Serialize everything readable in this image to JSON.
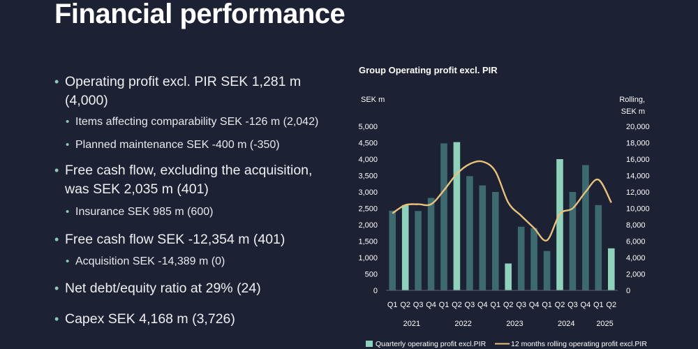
{
  "slide": {
    "title": "Financial performance"
  },
  "bullets": [
    {
      "level": 1,
      "text": "Operating profit excl. PIR SEK 1,281 m (4,000)"
    },
    {
      "level": 2,
      "text": "Items affecting comparability SEK -126 m (2,042)"
    },
    {
      "level": 2,
      "text": "Planned maintenance SEK -400 m (-350)"
    },
    {
      "level": 1,
      "text": "Free cash flow, excluding the acquisition, was SEK 2,035 m (401)"
    },
    {
      "level": 2,
      "text": "Insurance SEK 985 m (600)"
    },
    {
      "level": 1,
      "text": "Free cash flow SEK -12,354 m (401)"
    },
    {
      "level": 2,
      "text": "Acquisition SEK -14,389 m (0)"
    },
    {
      "level": 1,
      "text": "Net debt/equity ratio at 29% (24)"
    },
    {
      "level": 1,
      "text": "Capex SEK 4,168 m (3,726)"
    }
  ],
  "chart_data": {
    "type": "bar",
    "title": "Group Operating profit excl. PIR",
    "ylabel": "SEK m",
    "y2label_line1": "Rolling,",
    "y2label_line2": "SEK m",
    "ylim": [
      0,
      5000
    ],
    "y2lim": [
      0,
      20000
    ],
    "yticks": [
      "0",
      "500",
      "1,000",
      "1,500",
      "2,000",
      "2,500",
      "3,000",
      "3,500",
      "4,000",
      "4,500",
      "5,000"
    ],
    "y2ticks": [
      "0",
      "2,000",
      "4,000",
      "6,000",
      "8,000",
      "10,000",
      "12,000",
      "14,000",
      "16,000",
      "18,000",
      "20,000"
    ],
    "categories": [
      "Q1",
      "Q2",
      "Q3",
      "Q4",
      "Q1",
      "Q2",
      "Q3",
      "Q4",
      "Q1",
      "Q2",
      "Q3",
      "Q4",
      "Q1",
      "Q2",
      "Q3",
      "Q4",
      "Q1",
      "Q2"
    ],
    "years": [
      {
        "label": "2021",
        "start": 0,
        "count": 4
      },
      {
        "label": "2022",
        "start": 4,
        "count": 4
      },
      {
        "label": "2023",
        "start": 8,
        "count": 4
      },
      {
        "label": "2024",
        "start": 12,
        "count": 4
      },
      {
        "label": "2025",
        "start": 16,
        "count": 2
      }
    ],
    "series": [
      {
        "name": "Quarterly operating profit excl.PIR",
        "kind": "bar",
        "values": [
          2430,
          2600,
          2420,
          2820,
          4480,
          4520,
          3480,
          3200,
          3000,
          820,
          1940,
          1900,
          1200,
          4000,
          3000,
          3820,
          2600,
          1281
        ]
      },
      {
        "name": "12 months rolling operating profit excl.PIR",
        "kind": "line",
        "axis": "right",
        "values": [
          9400,
          10400,
          10500,
          10500,
          12200,
          14200,
          15400,
          15700,
          14500,
          10700,
          9100,
          7600,
          6100,
          9300,
          10000,
          12000,
          13500,
          10700
        ]
      }
    ],
    "colors": {
      "bar_current": "#8fd2bb",
      "bar_prior": "#3d6a71",
      "line": "#e9c27a",
      "axis_text": "#ffffff",
      "gridline": "#5a6070"
    },
    "highlight_quarter": "Q2"
  }
}
